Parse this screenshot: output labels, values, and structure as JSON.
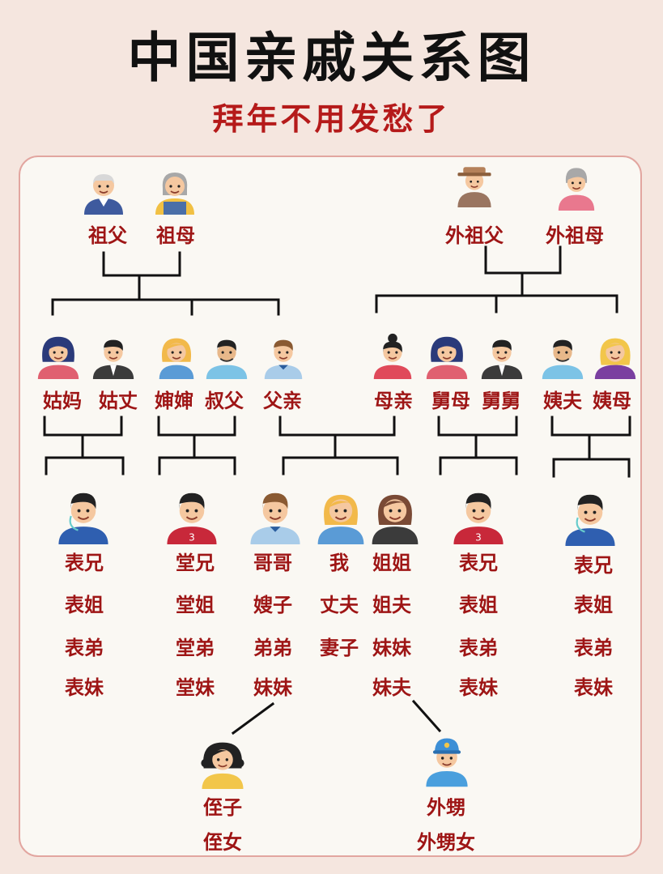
{
  "title": "中国亲戚关系图",
  "subtitle": "拜年不用发愁了",
  "people": {
    "grandpa": "祖父",
    "grandma": "祖母",
    "maternal_grandpa": "外祖父",
    "maternal_grandma": "外祖母",
    "paternal_aunt": "姑妈",
    "paternal_aunt_husband": "姑丈",
    "uncle_wife": "婶婶",
    "uncle": "叔父",
    "father": "父亲",
    "mother": "母亲",
    "maternal_uncle_wife": "舅母",
    "maternal_uncle": "舅舅",
    "maternal_aunt_husband": "姨夫",
    "maternal_aunt": "姨母"
  },
  "groups": {
    "paternal_aunt_children": [
      "表兄",
      "表姐",
      "表弟",
      "表妹"
    ],
    "uncle_children": [
      "堂兄",
      "堂姐",
      "堂弟",
      "堂妹"
    ],
    "siblings_brothers": [
      "哥哥",
      "嫂子",
      "弟弟",
      "妹妹"
    ],
    "self": [
      "我",
      "丈夫",
      "妻子"
    ],
    "siblings_sisters": [
      "姐姐",
      "姐夫",
      "妹妹",
      "妹夫"
    ],
    "maternal_uncle_children": [
      "表兄",
      "表姐",
      "表弟",
      "表妹"
    ],
    "maternal_aunt_children": [
      "表兄",
      "表姐",
      "表弟",
      "表妹"
    ],
    "nephew_niece_brother_side": [
      "侄子",
      "侄女"
    ],
    "nephew_niece_sister_side": [
      "外甥",
      "外甥女"
    ]
  },
  "colors": {
    "label": "#9e1515",
    "subtitle": "#b51a1a",
    "panel_border": "#e2a6a0",
    "lines": "#111111"
  }
}
